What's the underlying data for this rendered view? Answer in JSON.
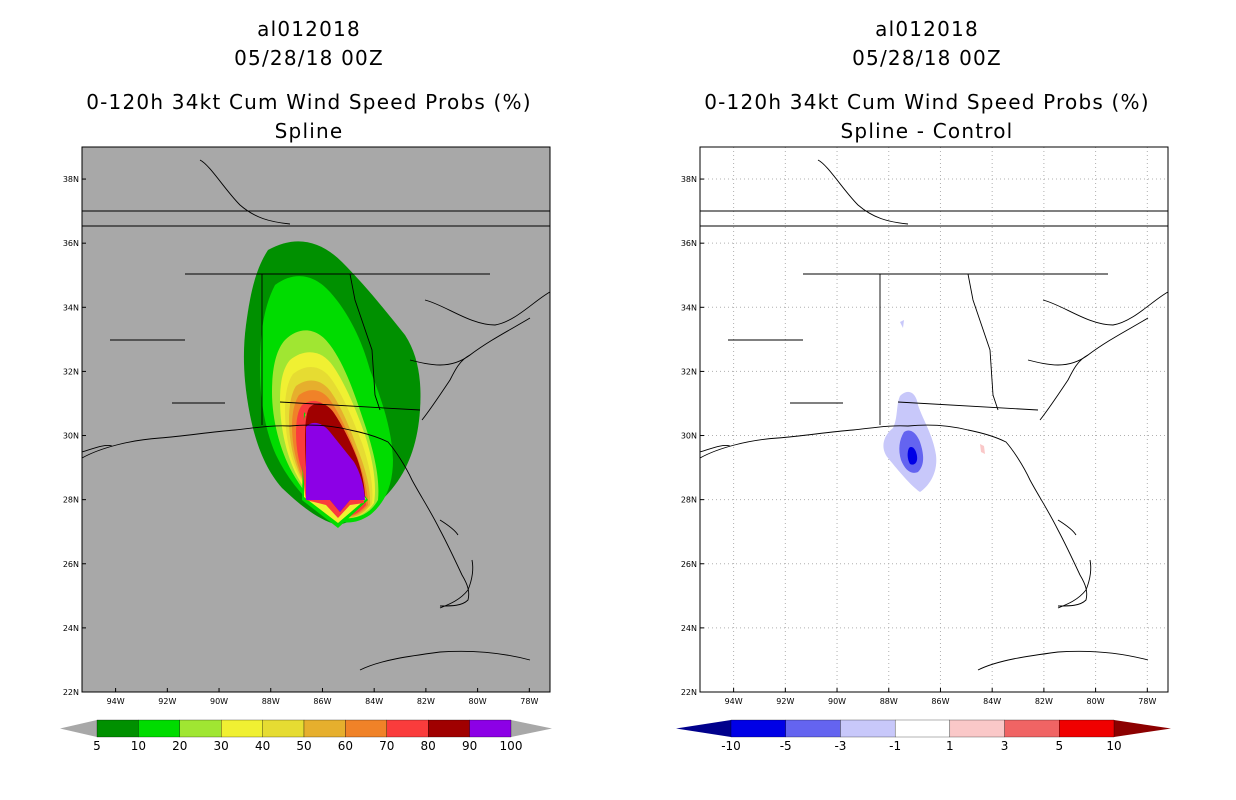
{
  "panels": [
    {
      "storm_id": "al012018",
      "datetime": "05/28/18 00Z",
      "product": "0-120h 34kt Cum Wind Speed Probs (%)",
      "subtitle": "Spline"
    },
    {
      "storm_id": "al012018",
      "datetime": "05/28/18 00Z",
      "product": "0-120h 34kt Cum Wind Speed Probs (%)",
      "subtitle": "Spline - Control"
    }
  ],
  "axes": {
    "lon_ticks": [
      "94W",
      "92W",
      "90W",
      "88W",
      "86W",
      "84W",
      "82W",
      "80W",
      "78W"
    ],
    "lat_ticks": [
      "38N",
      "36N",
      "34N",
      "32N",
      "30N",
      "28N",
      "26N",
      "24N",
      "22N"
    ],
    "lon_range": [
      -95.3,
      -77.2
    ],
    "lat_range": [
      22,
      39
    ]
  },
  "colorbar_left": {
    "labels": [
      "5",
      "10",
      "20",
      "30",
      "40",
      "50",
      "60",
      "70",
      "80",
      "90",
      "100"
    ],
    "colors": [
      "#009000",
      "#00dc00",
      "#a0e632",
      "#f0f032",
      "#e6dc32",
      "#e6af2d",
      "#f08228",
      "#fa3c3c",
      "#a00000",
      "#8c00e6"
    ],
    "arrow_color": "#a8a8a8"
  },
  "colorbar_right": {
    "labels": [
      "-10",
      "-5",
      "-3",
      "-1",
      "1",
      "3",
      "5",
      "10"
    ],
    "colors": [
      "#0000e6",
      "#6464f0",
      "#c8c8fa",
      "#ffffff",
      "#fac8c8",
      "#f06464",
      "#f00000"
    ],
    "arrow_low": "#00008c",
    "arrow_high": "#8c0000"
  },
  "colors": {
    "map_bg_left": "#a8a8a8",
    "map_bg_right": "#ffffff",
    "grid": "#b0b0b0"
  }
}
